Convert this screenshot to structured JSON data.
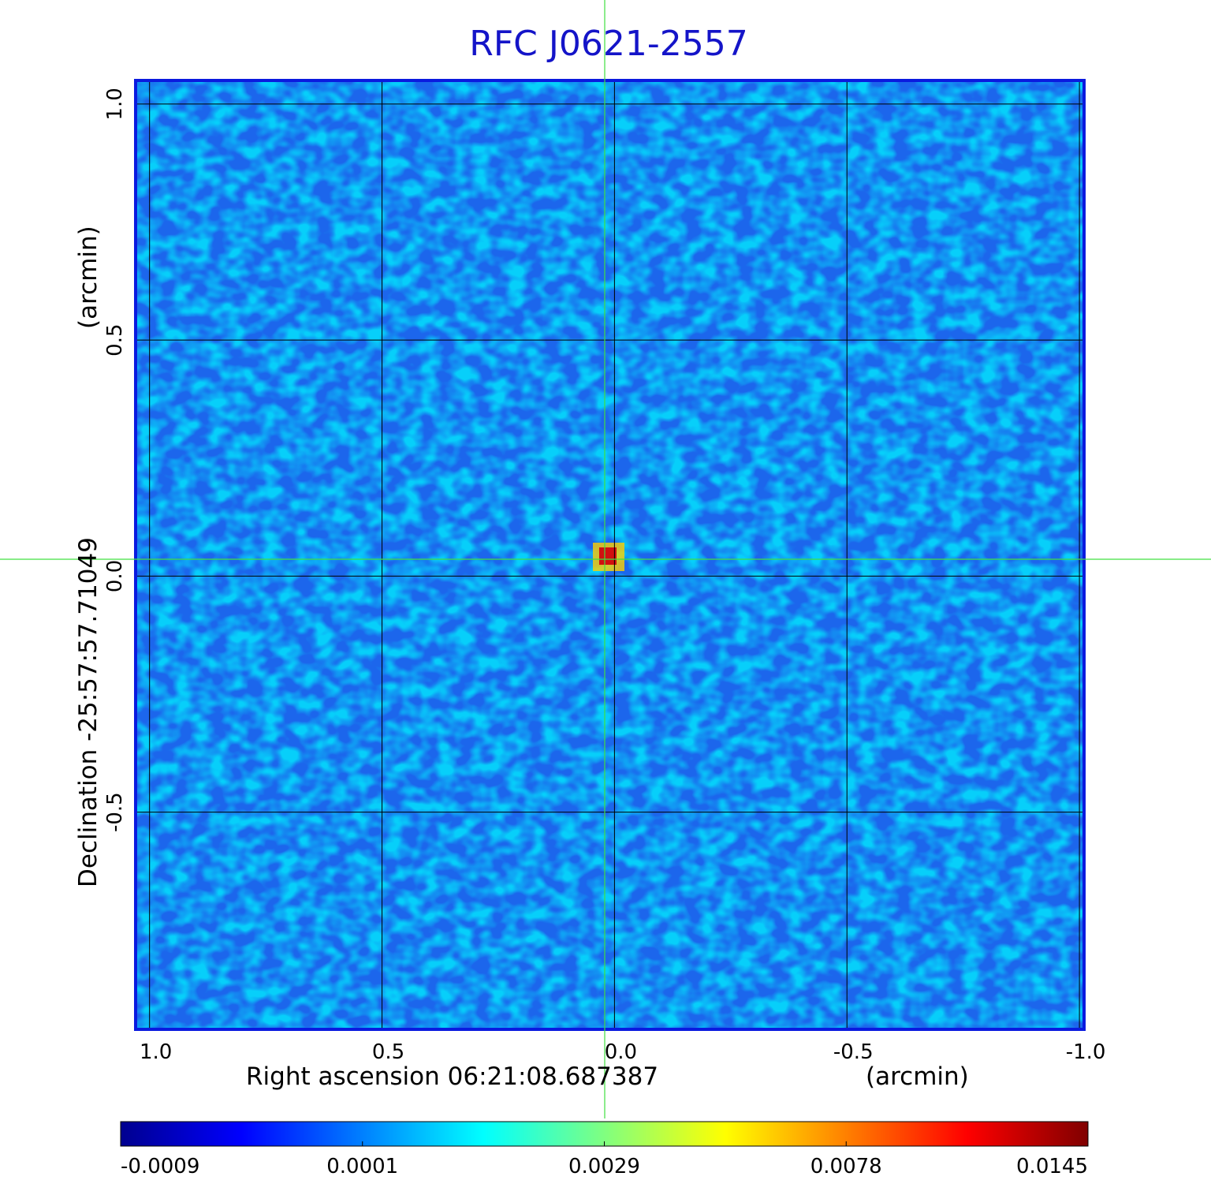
{
  "chart_data": {
    "type": "image",
    "title": "RFC J0621-2557",
    "x_label": "Right ascension  06:21:08.687387",
    "x_unit": "(arcmin)",
    "y_label": "Declination  -25:57:57.71049",
    "y_unit": "(arcmin)",
    "xlim": [
      1.03,
      -1.01
    ],
    "ylim": [
      -0.96,
      1.05
    ],
    "xticks": [
      {
        "value": 1,
        "label": "1.0"
      },
      {
        "value": 0.5,
        "label": "0.5"
      },
      {
        "value": 0,
        "label": "0.0"
      },
      {
        "value": -0.5,
        "label": "-0.5"
      },
      {
        "value": -1,
        "label": "-1.0"
      }
    ],
    "yticks": [
      {
        "value": 1,
        "label": "1.0"
      },
      {
        "value": 0.5,
        "label": "0.5"
      },
      {
        "value": 0,
        "label": "0.0"
      },
      {
        "value": -0.5,
        "label": "-0.5"
      }
    ],
    "grid": true,
    "colorbar": {
      "ticks": [
        -0.0009,
        0.0001,
        0.0029,
        0.0078,
        0.0145
      ],
      "colors": [
        "#00008f",
        "#0000ff",
        "#0080ff",
        "#00ffff",
        "#80ff80",
        "#ffff00",
        "#ff8000",
        "#ff0000",
        "#800000"
      ]
    }
  }
}
